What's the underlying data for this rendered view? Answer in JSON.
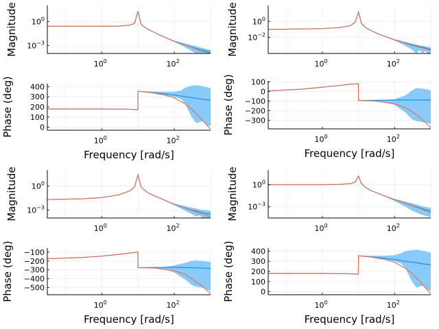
{
  "figure": {
    "description_free": true,
    "colors": {
      "band": "#82c8fa",
      "nominal": "#1f8ee0",
      "true_curve": "#e0735a",
      "grid": "#ebebeb",
      "axis": "#000000"
    }
  },
  "chart_data": [
    {
      "id": "p11",
      "type": "line",
      "kind": "magnitude",
      "ylabel": "Magnitude",
      "xlabel": "",
      "xscale": "log",
      "yscale": "log",
      "xlim": [
        0.0316,
        1000
      ],
      "ylim": [
        0.0001,
        100
      ],
      "xticks": [
        {
          "v": 1,
          "exp": "0"
        },
        {
          "v": 100,
          "exp": "2"
        }
      ],
      "yticks": [
        {
          "v": 1,
          "exp": "0"
        },
        {
          "v": 0.001,
          "exp": "-3"
        }
      ],
      "series": [
        {
          "name": "nominal",
          "x": [
            0.0316,
            1,
            3,
            6,
            8,
            10,
            12,
            15,
            20,
            40,
            100,
            200,
            300,
            500,
            700,
            1000
          ],
          "y": [
            0.25,
            0.25,
            0.27,
            0.35,
            0.6,
            20,
            0.5,
            0.2,
            0.09,
            0.02,
            0.0032,
            0.0011,
            0.00063,
            0.00032,
            0.00022,
            0.00014
          ]
        },
        {
          "name": "true",
          "x": [
            0.0316,
            1,
            3,
            6,
            8,
            10,
            12,
            15,
            20,
            40,
            100,
            200,
            300,
            500,
            700,
            1000
          ],
          "y": [
            0.25,
            0.25,
            0.27,
            0.35,
            0.6,
            20,
            0.5,
            0.2,
            0.09,
            0.02,
            0.0032,
            0.0011,
            0.0006,
            0.00025,
            0.00016,
            0.0001
          ]
        }
      ],
      "band": {
        "x": [
          40,
          100,
          200,
          300,
          400,
          500,
          600,
          700,
          800,
          1000
        ],
        "upper": [
          0.02,
          0.004,
          0.0018,
          0.0011,
          0.0008,
          0.0006,
          0.0005,
          0.0004,
          0.00035,
          0.0003
        ],
        "lower": [
          0.02,
          0.0028,
          0.0006,
          0.0002,
          6e-05,
          0.00012,
          4e-05,
          9e-05,
          5e-05,
          6e-05
        ]
      }
    },
    {
      "id": "p12",
      "type": "line",
      "kind": "magnitude",
      "ylabel": "Magnitude",
      "xlabel": "",
      "xscale": "log",
      "yscale": "log",
      "xlim": [
        0.0316,
        1000
      ],
      "ylim": [
        0.0001,
        100
      ],
      "xticks": [
        {
          "v": 1,
          "exp": "0"
        },
        {
          "v": 100,
          "exp": "2"
        }
      ],
      "yticks": [
        {
          "v": 1,
          "exp": "0"
        },
        {
          "v": 0.01,
          "exp": "-2"
        }
      ],
      "series": [
        {
          "name": "nominal",
          "x": [
            0.0316,
            1,
            3,
            6,
            8,
            10,
            12,
            15,
            20,
            40,
            100,
            200,
            300,
            500,
            700,
            1000
          ],
          "y": [
            0.1,
            0.13,
            0.17,
            0.3,
            0.8,
            15,
            0.6,
            0.2,
            0.09,
            0.022,
            0.005,
            0.002,
            0.0012,
            0.0007,
            0.0005,
            0.0003
          ]
        },
        {
          "name": "true",
          "x": [
            0.0316,
            1,
            3,
            6,
            8,
            10,
            12,
            15,
            20,
            40,
            100,
            200,
            300,
            500,
            700,
            1000
          ],
          "y": [
            0.1,
            0.13,
            0.17,
            0.3,
            0.8,
            15,
            0.6,
            0.2,
            0.09,
            0.022,
            0.005,
            0.0019,
            0.001,
            0.0006,
            0.0004,
            0.00025
          ]
        }
      ],
      "band": {
        "x": [
          40,
          100,
          200,
          300,
          400,
          500,
          600,
          700,
          800,
          1000
        ],
        "upper": [
          0.022,
          0.006,
          0.0028,
          0.0018,
          0.0013,
          0.001,
          0.0009,
          0.0008,
          0.0007,
          0.0006
        ],
        "lower": [
          0.022,
          0.004,
          0.0009,
          0.0003,
          0.0001,
          0.00025,
          8e-05,
          0.0002,
          0.0001,
          0.0001
        ]
      }
    },
    {
      "id": "p21",
      "type": "line",
      "kind": "phase",
      "ylabel": "Phase (deg)",
      "xlabel": "Frequency [rad/s]",
      "xscale": "log",
      "yscale": "linear",
      "xlim": [
        0.0316,
        1000
      ],
      "ylim": [
        -30,
        430
      ],
      "xticks": [
        {
          "v": 1,
          "exp": "0"
        },
        {
          "v": 100,
          "exp": "2"
        }
      ],
      "yticks": [
        {
          "v": 400,
          "t": "400"
        },
        {
          "v": 300,
          "t": "300"
        },
        {
          "v": 200,
          "t": "200"
        },
        {
          "v": 100,
          "t": "100"
        },
        {
          "v": 0,
          "t": "0"
        }
      ],
      "series": [
        {
          "name": "nominal",
          "x": [
            0.0316,
            1,
            5,
            9.9,
            10,
            20,
            50,
            100,
            200,
            400,
            700,
            1000
          ],
          "y": [
            180,
            180,
            178,
            172,
            355,
            345,
            330,
            318,
            300,
            285,
            272,
            265
          ]
        },
        {
          "name": "true",
          "x": [
            0.0316,
            1,
            5,
            9.9,
            10,
            20,
            50,
            100,
            200,
            300,
            500,
            700,
            1000
          ],
          "y": [
            180,
            180,
            178,
            172,
            355,
            345,
            320,
            290,
            230,
            180,
            100,
            40,
            -20
          ]
        }
      ],
      "band": {
        "x": [
          10,
          50,
          100,
          150,
          200,
          300,
          400,
          600,
          800,
          1000
        ],
        "upper": [
          355,
          350,
          350,
          360,
          390,
          410,
          415,
          405,
          395,
          385
        ],
        "lower": [
          355,
          320,
          300,
          280,
          230,
          100,
          40,
          60,
          20,
          10
        ]
      }
    },
    {
      "id": "p22",
      "type": "line",
      "kind": "phase",
      "ylabel": "Phase (deg)",
      "xlabel": "Frequency [rad/s]",
      "xscale": "log",
      "yscale": "linear",
      "xlim": [
        0.0316,
        1000
      ],
      "ylim": [
        -390,
        110
      ],
      "xticks": [
        {
          "v": 1,
          "exp": "0"
        },
        {
          "v": 100,
          "exp": "2"
        }
      ],
      "yticks": [
        {
          "v": 100,
          "t": "100"
        },
        {
          "v": 0,
          "t": "0"
        },
        {
          "v": -100,
          "t": "−100"
        },
        {
          "v": -200,
          "t": "−200"
        },
        {
          "v": -300,
          "t": "−300"
        }
      ],
      "series": [
        {
          "name": "nominal",
          "x": [
            0.0316,
            0.3,
            1,
            3,
            6,
            9.9,
            10,
            30,
            100,
            300,
            600,
            1000
          ],
          "y": [
            5,
            25,
            45,
            62,
            75,
            80,
            -95,
            -93,
            -90,
            -88,
            -90,
            -90
          ]
        },
        {
          "name": "true",
          "x": [
            0.0316,
            0.3,
            1,
            3,
            6,
            9.9,
            10,
            30,
            100,
            200,
            300,
            500,
            700,
            1000
          ],
          "y": [
            5,
            25,
            45,
            62,
            75,
            80,
            -95,
            -100,
            -130,
            -170,
            -210,
            -270,
            -320,
            -380
          ]
        }
      ],
      "band": {
        "x": [
          10,
          50,
          100,
          200,
          300,
          400,
          600,
          800,
          1000
        ],
        "upper": [
          -95,
          -90,
          -80,
          -40,
          10,
          35,
          30,
          20,
          10
        ],
        "lower": [
          -95,
          -110,
          -140,
          -220,
          -290,
          -310,
          -320,
          -330,
          -340
        ]
      }
    },
    {
      "id": "p31",
      "type": "line",
      "kind": "magnitude",
      "ylabel": "Magnitude",
      "xlabel": "",
      "xscale": "log",
      "yscale": "log",
      "xlim": [
        0.0316,
        1000
      ],
      "ylim": [
        0.0001,
        100
      ],
      "xticks": [
        {
          "v": 1,
          "exp": "0"
        },
        {
          "v": 100,
          "exp": "2"
        }
      ],
      "yticks": [
        {
          "v": 1,
          "exp": "0"
        },
        {
          "v": 0.001,
          "exp": "-3"
        }
      ],
      "series": [
        {
          "name": "nominal",
          "x": [
            0.0316,
            0.3,
            1,
            3,
            6,
            8,
            10,
            12,
            15,
            20,
            40,
            100,
            200,
            300,
            500,
            700,
            1000
          ],
          "y": [
            0.02,
            0.025,
            0.035,
            0.08,
            0.25,
            0.8,
            25,
            0.8,
            0.3,
            0.12,
            0.03,
            0.005,
            0.0018,
            0.001,
            0.0006,
            0.0004,
            0.0003
          ]
        },
        {
          "name": "true",
          "x": [
            0.0316,
            0.3,
            1,
            3,
            6,
            8,
            10,
            12,
            15,
            20,
            40,
            100,
            200,
            300,
            500,
            700,
            1000
          ],
          "y": [
            0.02,
            0.025,
            0.035,
            0.08,
            0.25,
            0.8,
            25,
            0.8,
            0.3,
            0.12,
            0.03,
            0.005,
            0.0017,
            0.0009,
            0.0004,
            0.00025,
            0.00015
          ]
        }
      ],
      "band": {
        "x": [
          40,
          100,
          200,
          300,
          400,
          500,
          600,
          800,
          1000
        ],
        "upper": [
          0.03,
          0.006,
          0.003,
          0.002,
          0.0015,
          0.0012,
          0.001,
          0.0009,
          0.0008
        ],
        "lower": [
          0.03,
          0.004,
          0.0008,
          0.0003,
          0.00015,
          0.0002,
          6e-05,
          0.0001,
          8e-05
        ]
      }
    },
    {
      "id": "p32",
      "type": "line",
      "kind": "magnitude",
      "ylabel": "Magnitude",
      "xlabel": "",
      "xscale": "log",
      "yscale": "log",
      "xlim": [
        0.0316,
        1000
      ],
      "ylim": [
        3e-05,
        100
      ],
      "xticks": [
        {
          "v": 1,
          "exp": "0"
        },
        {
          "v": 100,
          "exp": "2"
        }
      ],
      "yticks": [
        {
          "v": 1,
          "exp": "0"
        },
        {
          "v": 0.001,
          "exp": "-3"
        }
      ],
      "series": [
        {
          "name": "nominal",
          "x": [
            0.0316,
            1,
            3,
            6,
            8,
            10,
            12,
            15,
            20,
            40,
            100,
            200,
            300,
            500,
            700,
            1000
          ],
          "y": [
            1,
            1,
            1.1,
            1.4,
            2.2,
            15,
            1.5,
            0.5,
            0.2,
            0.05,
            0.009,
            0.003,
            0.0015,
            0.0007,
            0.0004,
            0.00025
          ]
        },
        {
          "name": "true",
          "x": [
            0.0316,
            1,
            3,
            6,
            8,
            10,
            12,
            15,
            20,
            40,
            100,
            200,
            300,
            500,
            700,
            1000
          ],
          "y": [
            1,
            1,
            1.1,
            1.4,
            2.2,
            15,
            1.5,
            0.5,
            0.2,
            0.05,
            0.009,
            0.003,
            0.0014,
            0.0006,
            0.0003,
            0.00015
          ]
        }
      ],
      "band": {
        "x": [
          40,
          100,
          200,
          300,
          500,
          700,
          1000
        ],
        "upper": [
          0.05,
          0.012,
          0.005,
          0.003,
          0.0015,
          0.001,
          0.0007
        ],
        "lower": [
          0.05,
          0.006,
          0.001,
          0.0003,
          0.0001,
          6e-05,
          4e-05
        ]
      }
    },
    {
      "id": "p41",
      "type": "line",
      "kind": "phase",
      "ylabel": "Phase (deg)",
      "xlabel": "Frequency [rad/s]",
      "xscale": "log",
      "yscale": "linear",
      "xlim": [
        0.0316,
        1000
      ],
      "ylim": [
        -580,
        -55
      ],
      "xticks": [
        {
          "v": 1,
          "exp": "0"
        },
        {
          "v": 100,
          "exp": "2"
        }
      ],
      "yticks": [
        {
          "v": -100,
          "t": "−100"
        },
        {
          "v": -200,
          "t": "−200"
        },
        {
          "v": -300,
          "t": "−300"
        },
        {
          "v": -400,
          "t": "−400"
        },
        {
          "v": -500,
          "t": "−500"
        }
      ],
      "series": [
        {
          "name": "nominal",
          "x": [
            0.0316,
            0.3,
            1,
            3,
            6,
            9.9,
            10,
            30,
            100,
            300,
            1000
          ],
          "y": [
            -175,
            -160,
            -145,
            -125,
            -110,
            -100,
            -275,
            -273,
            -272,
            -275,
            -285
          ]
        },
        {
          "name": "true",
          "x": [
            0.0316,
            0.3,
            1,
            3,
            6,
            9.9,
            10,
            30,
            100,
            200,
            300,
            500,
            700,
            1000
          ],
          "y": [
            -175,
            -160,
            -145,
            -125,
            -110,
            -100,
            -275,
            -280,
            -310,
            -350,
            -400,
            -460,
            -510,
            -570
          ]
        }
      ],
      "band": {
        "x": [
          10,
          50,
          100,
          200,
          300,
          400,
          600,
          800,
          1000
        ],
        "upper": [
          -275,
          -270,
          -250,
          -220,
          -200,
          -195,
          -200,
          -205,
          -210
        ],
        "lower": [
          -275,
          -290,
          -330,
          -410,
          -470,
          -490,
          -500,
          -520,
          -540
        ]
      }
    },
    {
      "id": "p42",
      "type": "line",
      "kind": "phase",
      "ylabel": "Phase (deg)",
      "xlabel": "Frequency [rad/s]",
      "xscale": "log",
      "yscale": "linear",
      "xlim": [
        0.0316,
        1000
      ],
      "ylim": [
        -30,
        430
      ],
      "xticks": [
        {
          "v": 1,
          "exp": "0"
        },
        {
          "v": 100,
          "exp": "2"
        }
      ],
      "yticks": [
        {
          "v": 400,
          "t": "400"
        },
        {
          "v": 300,
          "t": "300"
        },
        {
          "v": 200,
          "t": "200"
        },
        {
          "v": 100,
          "t": "100"
        },
        {
          "v": 0,
          "t": "0"
        }
      ],
      "series": [
        {
          "name": "nominal",
          "x": [
            0.0316,
            1,
            5,
            9.9,
            10,
            20,
            50,
            100,
            200,
            400,
            700,
            1000
          ],
          "y": [
            180,
            180,
            178,
            172,
            355,
            345,
            330,
            318,
            300,
            285,
            272,
            265
          ]
        },
        {
          "name": "true",
          "x": [
            0.0316,
            1,
            5,
            9.9,
            10,
            20,
            50,
            100,
            200,
            300,
            500,
            700,
            1000
          ],
          "y": [
            180,
            180,
            178,
            172,
            355,
            345,
            320,
            290,
            230,
            180,
            100,
            40,
            -20
          ]
        }
      ],
      "band": {
        "x": [
          10,
          50,
          100,
          150,
          200,
          300,
          400,
          600,
          800,
          1000
        ],
        "upper": [
          355,
          355,
          360,
          380,
          400,
          410,
          415,
          405,
          395,
          385
        ],
        "lower": [
          355,
          320,
          300,
          280,
          230,
          100,
          40,
          60,
          20,
          10
        ]
      }
    }
  ]
}
